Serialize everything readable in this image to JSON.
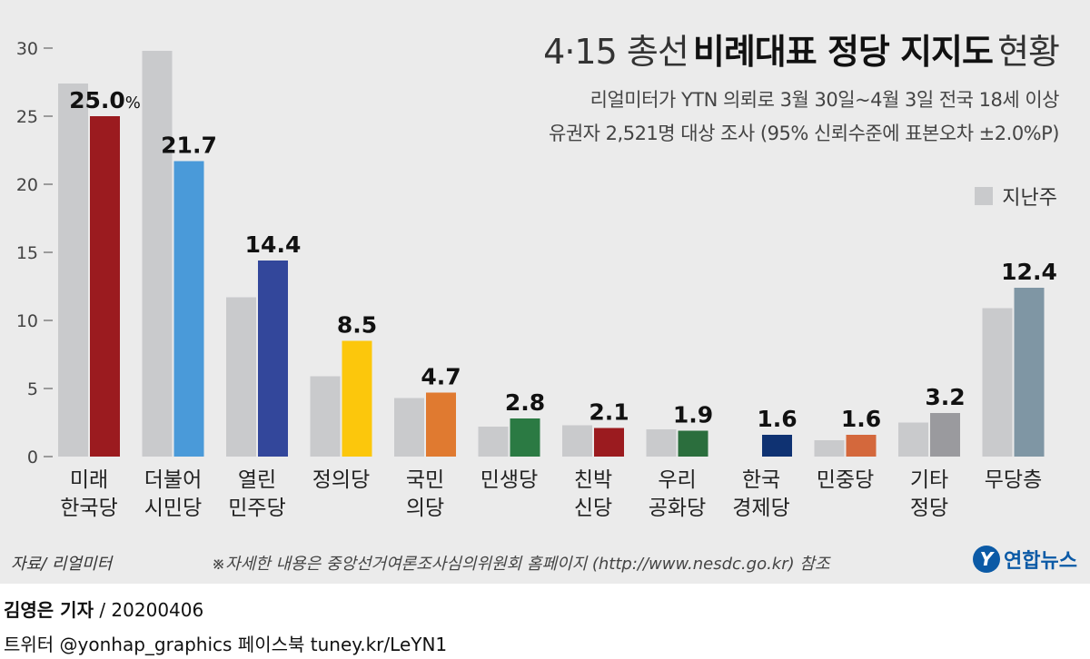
{
  "title": {
    "light_prefix": "4·15 총선",
    "bold": "비례대표 정당 지지도",
    "light_suffix": "현황"
  },
  "subtitle_lines": [
    "리얼미터가 YTN 의뢰로 3월 30일~4월 3일 전국 18세 이상",
    "유권자 2,521명 대상 조사 (95% 신뢰수준에 표본오차 ±2.0%P)"
  ],
  "legend": {
    "label": "지난주",
    "color": "#c9cacc"
  },
  "source": "자료/ 리얼미터",
  "note": "※자세한 내용은 중앙선거여론조사심의위원회 홈페이지 (http://www.nesdc.go.kr) 참조",
  "logo": {
    "mark": "Y",
    "text": "연합뉴스",
    "color": "#0b5aa6"
  },
  "credit": {
    "author": "김영은 기자",
    "date_sep": " / 20200406",
    "social": "트위터 @yonhap_graphics  페이스북 tuney.kr/LeYN1"
  },
  "chart_data": {
    "type": "bar",
    "ylim": [
      0,
      30
    ],
    "yticks": [
      0,
      5,
      10,
      15,
      20,
      25,
      30
    ],
    "grid": false,
    "value_unit_first": "%",
    "categories": [
      [
        "미래",
        "한국당"
      ],
      [
        "더불어",
        "시민당"
      ],
      [
        "열린",
        "민주당"
      ],
      [
        "정의당"
      ],
      [
        "국민",
        "의당"
      ],
      [
        "민생당"
      ],
      [
        "친박",
        "신당"
      ],
      [
        "우리",
        "공화당"
      ],
      [
        "한국",
        "경제당"
      ],
      [
        "민중당"
      ],
      [
        "기타",
        "정당"
      ],
      [
        "무당층"
      ]
    ],
    "series": [
      {
        "name": "지난주",
        "color": "#c9cacc",
        "values": [
          27.4,
          29.8,
          11.7,
          5.9,
          4.3,
          2.2,
          2.3,
          2.0,
          null,
          1.2,
          2.5,
          10.9
        ]
      },
      {
        "values": [
          25.0,
          21.7,
          14.4,
          8.5,
          4.7,
          2.8,
          2.1,
          1.9,
          1.6,
          1.6,
          3.2,
          12.4
        ],
        "labels": [
          "25.0",
          "21.7",
          "14.4",
          "8.5",
          "4.7",
          "2.8",
          "2.1",
          "1.9",
          "1.6",
          "1.6",
          "3.2",
          "12.4"
        ],
        "colors": [
          "#9b1b1f",
          "#4a9ad9",
          "#33479b",
          "#fcc70c",
          "#e07a30",
          "#2b7a43",
          "#9b1b1f",
          "#2b6e3d",
          "#0f3272",
          "#d4683c",
          "#9a9a9e",
          "#7f96a4"
        ]
      }
    ]
  }
}
